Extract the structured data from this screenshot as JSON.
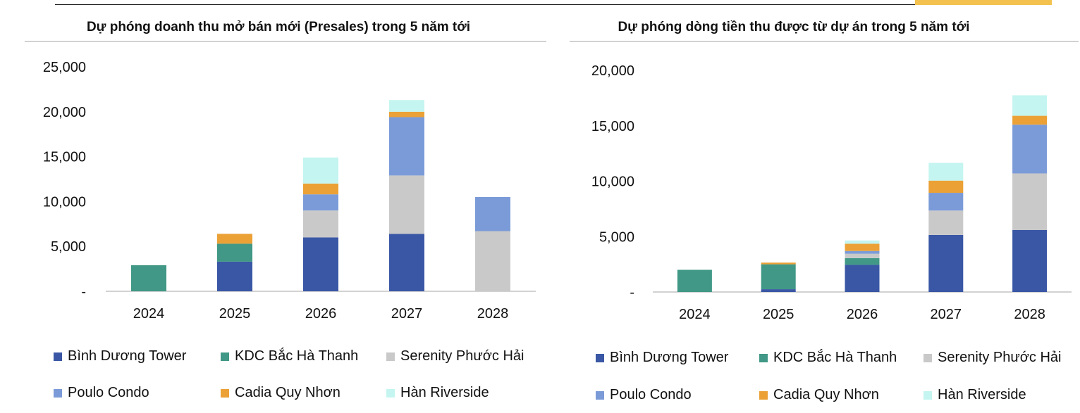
{
  "colors": {
    "binh_duong_tower": "#3a57a5",
    "kdc_bac_ha_thanh": "#419886",
    "serenity_phuoc_hai": "#c9c9c9",
    "poulo_condo": "#7b9bd8",
    "cadia_quy_nhon": "#eba136",
    "han_riverside": "#c4f5f0",
    "axis": "#a6a6a6"
  },
  "chart_data": [
    {
      "type": "bar",
      "stacked": true,
      "title": "Dự phóng doanh thu mở bán mới (Presales) trong 5 năm tới",
      "xlabel": "",
      "ylabel": "",
      "ylim": [
        0,
        25000
      ],
      "yticks": [
        "-",
        "5,000",
        "10,000",
        "15,000",
        "20,000",
        "25,000"
      ],
      "categories": [
        "2024",
        "2025",
        "2026",
        "2027",
        "2028"
      ],
      "series": [
        {
          "name": "Bình Dương Tower",
          "values": [
            0,
            3300,
            6000,
            6400,
            0
          ]
        },
        {
          "name": "KDC Bắc Hà Thanh",
          "values": [
            2900,
            2000,
            0,
            0,
            0
          ]
        },
        {
          "name": "Serenity Phước Hải",
          "values": [
            0,
            0,
            3000,
            6500,
            6700
          ]
        },
        {
          "name": "Poulo Condo",
          "values": [
            0,
            0,
            1800,
            6500,
            3800
          ]
        },
        {
          "name": "Cadia Quy Nhơn",
          "values": [
            0,
            1100,
            1200,
            600,
            0
          ]
        },
        {
          "name": "Hàn Riverside",
          "values": [
            0,
            0,
            2900,
            1300,
            0
          ]
        }
      ],
      "legend": "bottom"
    },
    {
      "type": "bar",
      "stacked": true,
      "title": "Dự phóng dòng tiền thu được từ dự án trong 5 năm tới",
      "xlabel": "",
      "ylabel": "",
      "ylim": [
        0,
        20000
      ],
      "yticks": [
        "-",
        "5,000",
        "10,000",
        "15,000",
        "20,000"
      ],
      "categories": [
        "2024",
        "2025",
        "2026",
        "2027",
        "2028"
      ],
      "series": [
        {
          "name": "Bình Dương Tower",
          "values": [
            0,
            250,
            2450,
            5150,
            5600
          ]
        },
        {
          "name": "KDC Bắc Hà Thanh",
          "values": [
            2000,
            2250,
            600,
            0,
            0
          ]
        },
        {
          "name": "Serenity Phước Hải",
          "values": [
            0,
            0,
            400,
            2200,
            5100
          ]
        },
        {
          "name": "Poulo Condo",
          "values": [
            0,
            0,
            250,
            1600,
            4400
          ]
        },
        {
          "name": "Cadia Quy Nhơn",
          "values": [
            0,
            150,
            650,
            1100,
            800
          ]
        },
        {
          "name": "Hàn Riverside",
          "values": [
            0,
            0,
            300,
            1600,
            1850
          ]
        }
      ],
      "legend": "bottom"
    }
  ]
}
